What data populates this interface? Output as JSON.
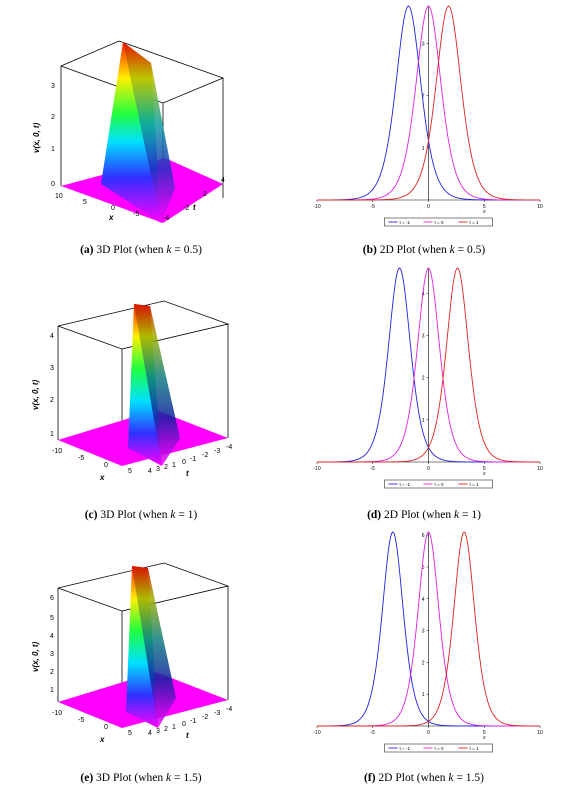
{
  "captions": [
    {
      "tag": "(a)",
      "pre": "3D Plot (when ",
      "k": "k",
      "post": " = 0.5)"
    },
    {
      "tag": "(b)",
      "pre": "2D Plot (when ",
      "k": "k",
      "post": " = 0.5)"
    },
    {
      "tag": "(c)",
      "pre": "3D Plot (when ",
      "k": "k",
      "post": " = 1)"
    },
    {
      "tag": "(d)",
      "pre": "2D Plot (when ",
      "k": "k",
      "post": " = 1)"
    },
    {
      "tag": "(e)",
      "pre": "3D Plot (when ",
      "k": "k",
      "post": " = 1.5)"
    },
    {
      "tag": "(f)",
      "pre": "2D Plot (when ",
      "k": "k",
      "post": " = 1.5)"
    }
  ],
  "surface": {
    "zlabel": "v(x, 0, t)",
    "xlabel": "x",
    "tlabel": "t",
    "panels": [
      {
        "zticks": [
          "0",
          "1",
          "2",
          "3"
        ],
        "xticks": [
          "10",
          "5",
          "0",
          "-5"
        ],
        "tticks": [
          "4",
          "2",
          "-2",
          "-4"
        ]
      },
      {
        "zticks": [
          "1",
          "2",
          "3",
          "4"
        ],
        "xticks": [
          "-10",
          "-5",
          "0",
          "5"
        ],
        "tticks": [
          "4",
          "3",
          "2",
          "1",
          "0",
          "-1",
          "-2",
          "-3",
          "-4"
        ]
      },
      {
        "zticks": [
          "1",
          "2",
          "3",
          "4",
          "5",
          "6"
        ],
        "xticks": [
          "-10",
          "-5",
          "0",
          "5"
        ],
        "tticks": [
          "4",
          "3",
          "2",
          "1",
          "0",
          "-1",
          "-2",
          "-3",
          "-4"
        ]
      }
    ]
  },
  "colors": {
    "t_minus1": "#2020e0",
    "t_0": "#e020e0",
    "t_1": "#e02020",
    "surface_base": "#ff00ff"
  },
  "chart_data": [
    {
      "type": "line",
      "xlabel": "x",
      "xlim": [
        -10,
        10
      ],
      "ylim": [
        0,
        3.72
      ],
      "xticks": [
        "-10",
        "-5",
        "0",
        "5",
        "10"
      ],
      "yticks": [
        "1",
        "2",
        "3"
      ],
      "legend": [
        "t = -1",
        "t = 0",
        "t = 1"
      ],
      "legend_placement": "bottom",
      "series": [
        {
          "name": "t = -1",
          "peak_x": -1.8,
          "peak_y": 3.72,
          "width": 2.1
        },
        {
          "name": "t = 0",
          "peak_x": 0.0,
          "peak_y": 3.72,
          "width": 2.1
        },
        {
          "name": "t = 1",
          "peak_x": 1.8,
          "peak_y": 3.72,
          "width": 2.1
        }
      ]
    },
    {
      "type": "line",
      "xlabel": "x",
      "xlim": [
        -10,
        10
      ],
      "ylim": [
        0,
        4.6
      ],
      "xticks": [
        "-10",
        "-5",
        "0",
        "5",
        "10"
      ],
      "yticks": [
        "1",
        "2",
        "3",
        "4"
      ],
      "legend": [
        "t = -1",
        "t = 0",
        "t = 1"
      ],
      "legend_placement": "bottom",
      "series": [
        {
          "name": "t = -1",
          "peak_x": -2.6,
          "peak_y": 4.6,
          "width": 1.85
        },
        {
          "name": "t = 0",
          "peak_x": 0.0,
          "peak_y": 4.6,
          "width": 1.85
        },
        {
          "name": "t = 1",
          "peak_x": 2.6,
          "peak_y": 4.6,
          "width": 1.85
        }
      ]
    },
    {
      "type": "line",
      "xlabel": "x",
      "xlim": [
        -10,
        10
      ],
      "ylim": [
        0,
        6.1
      ],
      "xticks": [
        "-10",
        "-5",
        "0",
        "5",
        "10"
      ],
      "yticks": [
        "1",
        "2",
        "3",
        "4",
        "5",
        "6"
      ],
      "legend": [
        "t = -1",
        "t = 0",
        "t = 1"
      ],
      "legend_placement": "bottom",
      "series": [
        {
          "name": "t = -1",
          "peak_x": -3.2,
          "peak_y": 6.1,
          "width": 1.75
        },
        {
          "name": "t = 0",
          "peak_x": 0.0,
          "peak_y": 6.1,
          "width": 1.75
        },
        {
          "name": "t = 1",
          "peak_x": 3.2,
          "peak_y": 6.1,
          "width": 1.75
        }
      ]
    }
  ]
}
